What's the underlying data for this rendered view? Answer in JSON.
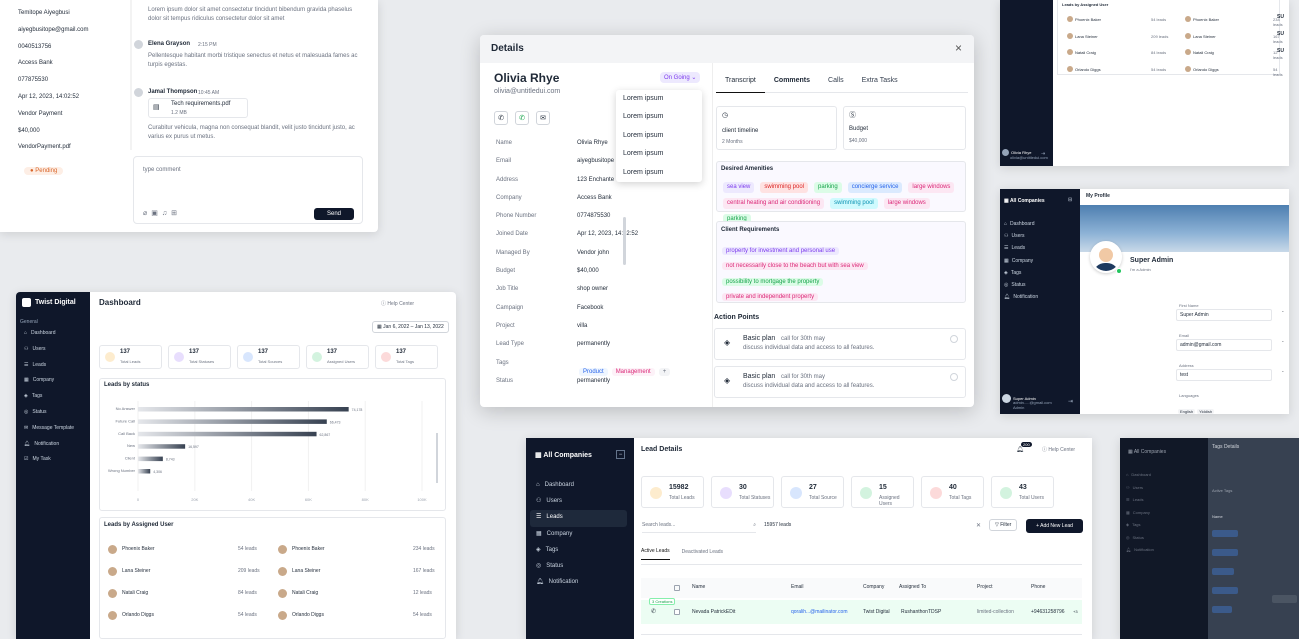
{
  "bg": {
    "accent": "#0f172a"
  },
  "chat": {
    "info": [
      "Temitope Aiyegbusi",
      "aiyegbusitope@gmail.com",
      "0040513756",
      "Access Bank",
      "077875530",
      "Apr 12, 2023, 14:02:52",
      "Vendor Payment",
      "$40,000",
      "VendorPayment.pdf"
    ],
    "pending": "Pending",
    "top_msg": "Lorem ipsum dolor sit amet consectetur tincidunt bibendum gravida phaselus dolor sit tempus ridiculus consectetur dolor sit amet",
    "msgs": [
      {
        "name": "Elena Grayson",
        "time": "2:15 PM",
        "text": "Pellentesque habitant morbi tristique senectus et netus et malesuada fames ac turpis egestas."
      },
      {
        "name": "Jamal Thompson",
        "time": "10:45 AM",
        "file": "Tech requirements.pdf",
        "size": "1.2 MB",
        "text": "Curabitur vehicula, magna non consequat blandit, velit justo tincidunt justo, ac varius ex purus ut metus."
      }
    ],
    "placeholder": "type comment",
    "send": "Send"
  },
  "dash": {
    "brand": "Twist Digital",
    "section": "General",
    "title": "Dashboard",
    "help": "Help Center",
    "date": "Jan 6, 2022 – Jan 13, 2022",
    "nav": [
      "Dashboard",
      "Users",
      "Leads",
      "Company",
      "Tags",
      "Status",
      "Message Template",
      "Notification",
      "My Task"
    ],
    "stats": [
      {
        "v": "137",
        "l": "Total Leads"
      },
      {
        "v": "137",
        "l": "Total Statuses"
      },
      {
        "v": "137",
        "l": "Total Sources"
      },
      {
        "v": "137",
        "l": "Assigned Users"
      },
      {
        "v": "137",
        "l": "Total Tags"
      }
    ],
    "chart_title": "Leads by status",
    "users_title": "Leads by Assigned User",
    "users": [
      {
        "a": "Phoenix Baker",
        "av": "54 leads",
        "b": "Phoenix Baker",
        "bv": "234 leads"
      },
      {
        "a": "Lana Steiner",
        "av": "209 leads",
        "b": "Lana Steiner",
        "bv": "167 leads"
      },
      {
        "a": "Natali Craig",
        "av": "84 leads",
        "b": "Natali Craig",
        "bv": "12 leads"
      },
      {
        "a": "Orlando Diggs",
        "av": "54 leads",
        "b": "Orlando Diggs",
        "bv": "54 leads"
      }
    ]
  },
  "chart_data": {
    "type": "bar",
    "title": "Leads by status",
    "categories": [
      "No Answer",
      "Future Call",
      "Call Back",
      "New",
      "Client",
      "Wrong Number"
    ],
    "values": [
      74178,
      66473,
      62867,
      16597,
      8743,
      4306
    ],
    "xlim": [
      0,
      100000
    ],
    "xticks": [
      "0",
      "20K",
      "40K",
      "60K",
      "80K",
      "100K"
    ],
    "value_labels": [
      "74,178",
      "66,473",
      "62,867",
      "16,597",
      "8,743",
      "4,306"
    ]
  },
  "details": {
    "title": "Details",
    "name": "Olivia Rhye",
    "email": "olivia@untitledui.com",
    "status": "On Going",
    "options": [
      "Lorem ipsum",
      "Lorem ipsum",
      "Lorem ipsum",
      "Lorem ipsum",
      "Lorem ipsum"
    ],
    "fields": [
      {
        "k": "Name",
        "v": "Olivia Rhye"
      },
      {
        "k": "Email",
        "v": "aiyegbusitope"
      },
      {
        "k": "Address",
        "v": "123 Enchante"
      },
      {
        "k": "Company",
        "v": "Access Bank"
      },
      {
        "k": "Phone Number",
        "v": "0774875530"
      },
      {
        "k": "Joined Date",
        "v": "Apr 12, 2023, 14:02:52"
      },
      {
        "k": "Managed By",
        "v": "Vendor john"
      },
      {
        "k": "Budget",
        "v": "$40,000"
      },
      {
        "k": "Job Title",
        "v": "shop owner"
      },
      {
        "k": "Campaign",
        "v": "Facebook"
      },
      {
        "k": "Project",
        "v": "villa"
      },
      {
        "k": "Lead Type",
        "v": "permanently"
      },
      {
        "k": "Tags",
        "v": ""
      },
      {
        "k": "Status",
        "v": "permanently"
      }
    ],
    "tags": [
      "Product",
      "Management",
      "+"
    ],
    "tabs": [
      "Transcript",
      "Comments",
      "Calls",
      "Extra Tasks"
    ],
    "timeline": {
      "l": "client timeline",
      "v": "2 Months"
    },
    "budget": {
      "l": "Budget",
      "v": "$40,000"
    },
    "amen_title": "Desired Amenities",
    "amen": [
      "sea view",
      "swimming pool",
      "parking",
      "concierge service",
      "large windows",
      "central heating and air conditioning",
      "swimming pool",
      "large windows",
      "parking"
    ],
    "req_title": "Client Requirements",
    "req": [
      "property for investment and personal use",
      "not necessarily close to the beach but with sea view",
      "possibility to mortgage the property",
      "private and independent property"
    ],
    "ap_title": "Action Points",
    "ap": [
      {
        "t": "Basic plan",
        "d": "call for 30th may",
        "s": "discuss individual data and access to all features."
      },
      {
        "t": "Basic plan",
        "d": "call for 30th may",
        "s": "discuss individual data and access to all features."
      }
    ]
  },
  "tr": {
    "title": "Leads by Assigned User",
    "rows": [
      [
        "Phoenix Baker",
        "54 leads",
        "Phoenix Baker",
        "234 leads"
      ],
      [
        "Lana Steiner",
        "209 leads",
        "Lana Steiner",
        "167 leads"
      ],
      [
        "Natali Craig",
        "84 leads",
        "Natali Craig",
        "12 leads"
      ],
      [
        "Orlando Diggs",
        "54 leads",
        "Orlando Diggs",
        "54 leads"
      ]
    ],
    "user": "Olivia Rhye",
    "mail": "olivia@untitledui.com",
    "su": [
      "SU",
      "SU",
      "SU"
    ]
  },
  "prof": {
    "brand": "All Companies",
    "title": "My Profile",
    "nav": [
      "Dashboard",
      "Users",
      "Leads",
      "Company",
      "Tags",
      "Status",
      "Notification"
    ],
    "name": "Super Admin",
    "role": "I'm a Admin",
    "fields": [
      {
        "k": "First Name",
        "v": "Super Admin"
      },
      {
        "k": "Email",
        "v": "admin@gmail.com"
      },
      {
        "k": "Address",
        "v": "test"
      },
      {
        "k": "Languages",
        "v": ""
      }
    ],
    "langs": [
      "English",
      "Yiddish"
    ],
    "user": "Super Admin",
    "mail": "admin.....@gmail.com",
    "sub": "Admin",
    "dash": [
      "-",
      "-",
      "-"
    ]
  },
  "leads": {
    "brand": "All Companies",
    "title": "Lead Details",
    "help": "Help Center",
    "badge": "200",
    "nav": [
      "Dashboard",
      "Users",
      "Leads",
      "Company",
      "Tags",
      "Status",
      "Notification"
    ],
    "stats": [
      {
        "v": "15982",
        "l": "Total Leads"
      },
      {
        "v": "30",
        "l": "Total Statuses"
      },
      {
        "v": "27",
        "l": "Total Source"
      },
      {
        "v": "15",
        "l": "Assigned Users"
      },
      {
        "v": "40",
        "l": "Total Tags"
      },
      {
        "v": "43",
        "l": "Total Users"
      }
    ],
    "search": "Search leads...",
    "count": "15957 leads",
    "filter": "Filter",
    "add": "Add New Lead",
    "tabs": [
      "Active Leads",
      "Deactivated Leads"
    ],
    "cols": [
      "Name",
      "Email",
      "Company",
      "Assigned To",
      "Project",
      "Phone"
    ],
    "tag": "3 Creations",
    "row": [
      "Nevada PatrickEDit",
      "qoralih...@mailinator.com",
      "Twist Digital",
      "RushanthonTDSP",
      "limited-collection",
      "+94631258796",
      "+3"
    ]
  },
  "tags": {
    "brand": "All Companies",
    "title": "Tags Details",
    "nav": [
      "Dashboard",
      "Users",
      "Leads",
      "Company",
      "Tags",
      "Status",
      "Notification"
    ],
    "sub": "Active Tags",
    "col": "Name"
  }
}
